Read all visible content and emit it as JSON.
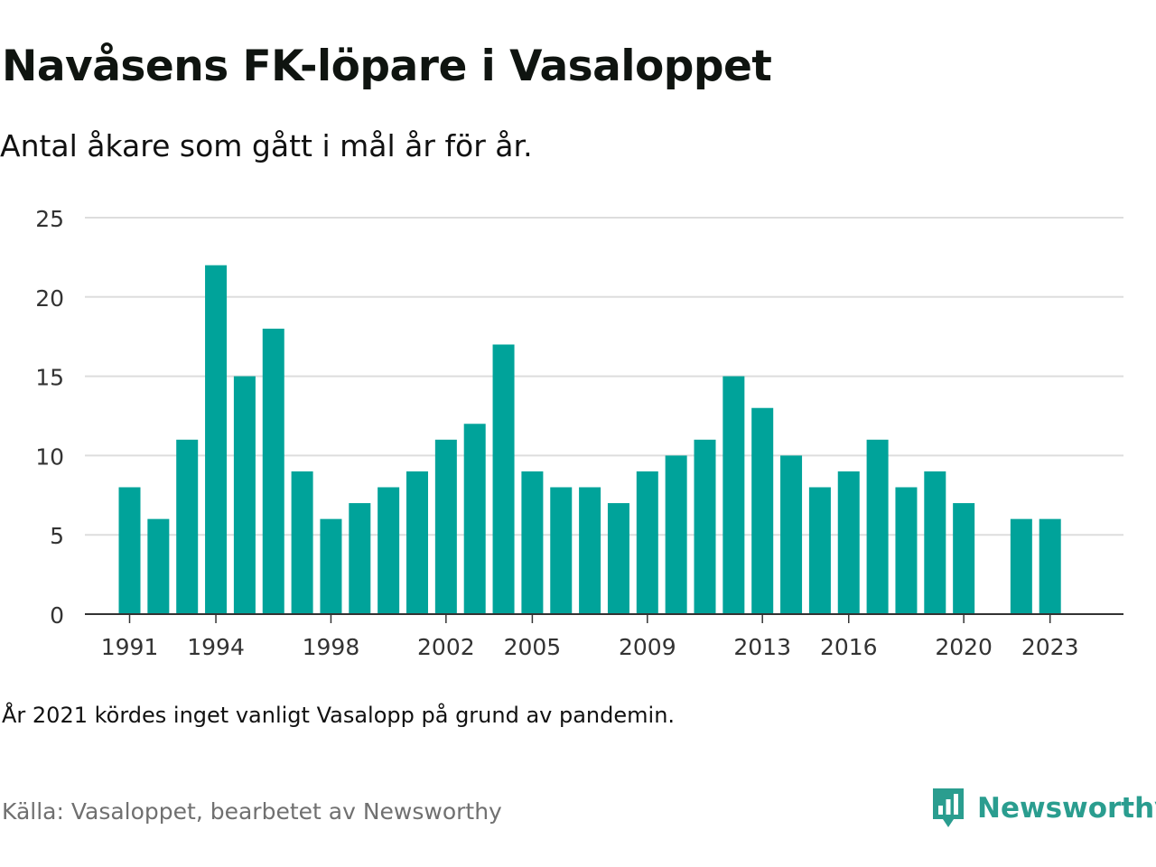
{
  "header": {
    "title": "Navåsens FK-löpare i Vasaloppet",
    "subtitle": "Antal åkare som gått i mål år för år."
  },
  "footer": {
    "note": "År 2021 kördes inget vanligt Vasalopp på grund av pandemin.",
    "source": "Källa: Vasaloppet, bearbetet av Newsworthy",
    "brand_name": "Newsworthy",
    "brand_icon": "newsworthy-logo-icon"
  },
  "colors": {
    "bar": "#00a39a",
    "grid": "#dddddd",
    "axis": "#333333",
    "brand": "#2a9d8f"
  },
  "chart_data": {
    "type": "bar",
    "title": "Navåsens FK-löpare i Vasaloppet",
    "subtitle": "Antal åkare som gått i mål år för år.",
    "xlabel": "",
    "ylabel": "",
    "ylim": [
      0,
      25
    ],
    "yticks": [
      0,
      5,
      10,
      15,
      20,
      25
    ],
    "xtick_labels": [
      "1991",
      "1994",
      "1998",
      "2002",
      "2005",
      "2009",
      "2013",
      "2016",
      "2020",
      "2023"
    ],
    "grid": true,
    "categories": [
      1991,
      1992,
      1993,
      1994,
      1995,
      1996,
      1997,
      1998,
      1999,
      2000,
      2001,
      2002,
      2003,
      2004,
      2005,
      2006,
      2007,
      2008,
      2009,
      2010,
      2011,
      2012,
      2013,
      2014,
      2015,
      2016,
      2017,
      2018,
      2019,
      2020,
      2021,
      2022,
      2023
    ],
    "values": [
      8,
      6,
      11,
      22,
      15,
      18,
      9,
      6,
      7,
      8,
      9,
      11,
      12,
      17,
      9,
      8,
      8,
      7,
      9,
      10,
      11,
      15,
      13,
      10,
      8,
      9,
      11,
      8,
      9,
      7,
      0,
      6,
      6
    ]
  }
}
